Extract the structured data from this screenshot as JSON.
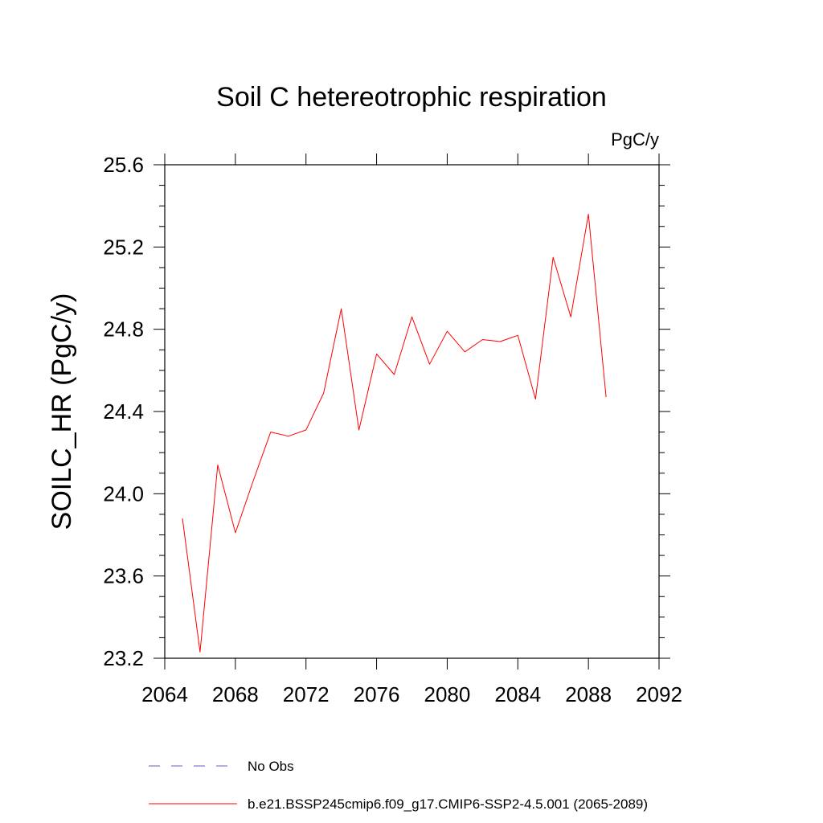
{
  "chart_data": {
    "type": "line",
    "title": "Soil C hetereotrophic respiration",
    "units": "PgC/y",
    "xlabel": "",
    "ylabel": "SOILC_HR  (PgC/y)",
    "xlim": [
      2064,
      2092
    ],
    "ylim": [
      23.2,
      25.6
    ],
    "xticks": [
      2064,
      2068,
      2072,
      2076,
      2080,
      2084,
      2088,
      2092
    ],
    "xtick_labels": [
      "2064",
      "2068",
      "2072",
      "2076",
      "2080",
      "2084",
      "2088",
      "2092"
    ],
    "yticks": [
      23.2,
      23.6,
      24.0,
      24.4,
      24.8,
      25.2,
      25.6
    ],
    "ytick_labels": [
      "23.2",
      "23.6",
      "24.0",
      "24.4",
      "24.8",
      "25.2",
      "25.6"
    ],
    "grid": false,
    "legend_position": "bottom",
    "series": [
      {
        "name": "b.e21.BSSP245cmip6.f09_g17.CMIP6-SSP2-4.5.001 (2065-2089)",
        "color": "#ff0000",
        "style": "solid",
        "x": [
          2065,
          2066,
          2067,
          2068,
          2069,
          2070,
          2071,
          2072,
          2073,
          2074,
          2075,
          2076,
          2077,
          2078,
          2079,
          2080,
          2081,
          2082,
          2083,
          2084,
          2085,
          2086,
          2087,
          2088,
          2089
        ],
        "y": [
          23.88,
          23.23,
          24.14,
          23.81,
          24.06,
          24.3,
          24.28,
          24.31,
          24.49,
          24.9,
          24.31,
          24.68,
          24.58,
          24.86,
          24.63,
          24.79,
          24.69,
          24.75,
          24.74,
          24.77,
          24.46,
          25.15,
          24.86,
          25.36,
          24.47
        ]
      }
    ],
    "legend": [
      {
        "label": "No Obs",
        "color": "#6a5acd",
        "style": "dashed"
      },
      {
        "label": "b.e21.BSSP245cmip6.f09_g17.CMIP6-SSP2-4.5.001 (2065-2089)",
        "color": "#ff0000",
        "style": "solid"
      }
    ]
  }
}
